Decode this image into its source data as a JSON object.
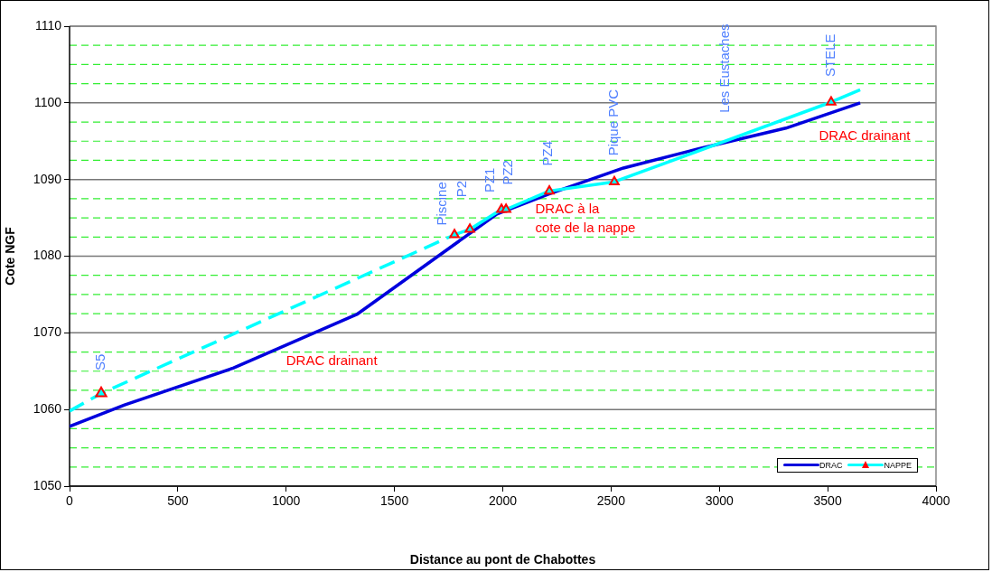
{
  "chart_data": {
    "type": "line",
    "xlabel": "Distance au pont de Chabottes",
    "ylabel": "Cote NGF",
    "xlim": [
      0,
      4000
    ],
    "xticks": [
      0,
      500,
      1000,
      1500,
      2000,
      2500,
      3000,
      3500,
      4000
    ],
    "ylim": [
      1050,
      1110
    ],
    "yticks": [
      1050,
      {
        "value": 1052.5,
        "label": null
      },
      {
        "value": 1055,
        "label": null
      },
      {
        "value": 1057.5,
        "label": null
      },
      1060,
      {
        "value": 1062.5,
        "label": null
      },
      {
        "value": 1065,
        "label": null
      },
      {
        "value": 1067.5,
        "label": null
      },
      1070,
      {
        "value": 1072.5,
        "label": null
      },
      {
        "value": 1075,
        "label": null
      },
      {
        "value": 1077.5,
        "label": null
      },
      1080,
      {
        "value": 1082.5,
        "label": null
      },
      {
        "value": 1085,
        "label": null
      },
      {
        "value": 1087.5,
        "label": null
      },
      1090,
      {
        "value": 1092.5,
        "label": null
      },
      {
        "value": 1095,
        "label": null
      },
      {
        "value": 1097.5,
        "label": null
      },
      1100,
      {
        "value": 1102.5,
        "label": null
      },
      {
        "value": 1105,
        "label": null
      },
      {
        "value": 1107.5,
        "label": null
      },
      1110
    ],
    "grid": "y",
    "legend": "bottom right",
    "series": [
      {
        "name": "DRAC",
        "color": "#0000dd",
        "marker": "none",
        "line_style": "solid",
        "x": [
          0,
          254,
          755,
          1326,
          1973,
          2211,
          2557,
          2903,
          3307,
          3650
        ],
        "values": [
          1057.8,
          1060.6,
          1065.4,
          1072.4,
          1085.5,
          1088.1,
          1091.5,
          1094.0,
          1096.7,
          1100.0
        ]
      },
      {
        "name": "NAPPE",
        "color": "#00ffff",
        "marker": "triangle",
        "line_style": "solid",
        "x": [
          1777,
          1848,
          1994,
          2015,
          2215,
          2515,
          3516
        ],
        "values": [
          1082.8,
          1083.5,
          1086.1,
          1086.1,
          1088.5,
          1089.7,
          1100.1
        ]
      },
      {
        "color": "#00ffff",
        "marker": "none",
        "line_style": "dashed",
        "x": [
          0,
          146,
          1777
        ],
        "values": [
          1059.8,
          1062.1,
          1082.8
        ]
      },
      {
        "color": "#00ffff",
        "marker": "none",
        "line_style": "solid",
        "x": [
          3516,
          3650
        ],
        "values": [
          1100.1,
          1101.7
        ]
      },
      {
        "color": "#00ffff",
        "type": "scatter",
        "marker": "triangle",
        "x": [
          146
        ],
        "values": [
          1062.1
        ]
      }
    ],
    "annotations": [
      "S5",
      "Piscine",
      "P2",
      "PZ1",
      "PZ2",
      "PZ4",
      "Pique PVC",
      "Les Eustaches",
      "STELE",
      "DRAC drainant",
      "DRAC à la\ncote de la nappe",
      "DRAC drainant"
    ]
  }
}
